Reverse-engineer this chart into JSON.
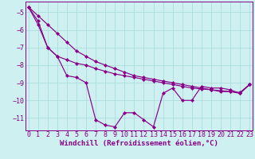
{
  "x": [
    0,
    1,
    2,
    3,
    4,
    5,
    6,
    7,
    8,
    9,
    10,
    11,
    12,
    13,
    14,
    15,
    16,
    17,
    18,
    19,
    20,
    21,
    22,
    23
  ],
  "line_data": [
    -4.7,
    -5.7,
    -7.0,
    -7.5,
    -8.6,
    -8.7,
    -9.0,
    -11.1,
    -11.4,
    -11.5,
    -10.7,
    -10.7,
    -11.1,
    -11.5,
    -9.6,
    -9.3,
    -10.0,
    -10.0,
    -9.2,
    -9.3,
    -9.3,
    -9.4,
    -9.6,
    -9.1
  ],
  "line_trend1": [
    -4.7,
    -5.2,
    -5.7,
    -6.2,
    -6.7,
    -7.2,
    -7.5,
    -7.8,
    -8.0,
    -8.2,
    -8.4,
    -8.6,
    -8.7,
    -8.8,
    -8.9,
    -9.0,
    -9.1,
    -9.2,
    -9.3,
    -9.4,
    -9.5,
    -9.5,
    -9.6,
    -9.1
  ],
  "line_trend2": [
    -4.7,
    -5.5,
    -7.0,
    -7.5,
    -7.7,
    -7.9,
    -8.0,
    -8.2,
    -8.35,
    -8.5,
    -8.6,
    -8.7,
    -8.8,
    -8.9,
    -9.0,
    -9.1,
    -9.2,
    -9.3,
    -9.35,
    -9.4,
    -9.45,
    -9.5,
    -9.55,
    -9.1
  ],
  "color": "#880088",
  "bg_color": "#cff0f0",
  "grid_color": "#aadddd",
  "xlabel": "Windchill (Refroidissement éolien,°C)",
  "ylim": [
    -11.7,
    -4.4
  ],
  "yticks": [
    -11,
    -10,
    -9,
    -8,
    -7,
    -6,
    -5
  ],
  "xticks": [
    0,
    1,
    2,
    3,
    4,
    5,
    6,
    7,
    8,
    9,
    10,
    11,
    12,
    13,
    14,
    15,
    16,
    17,
    18,
    19,
    20,
    21,
    22,
    23
  ],
  "xlabel_fontsize": 6.5,
  "tick_fontsize": 6.0
}
